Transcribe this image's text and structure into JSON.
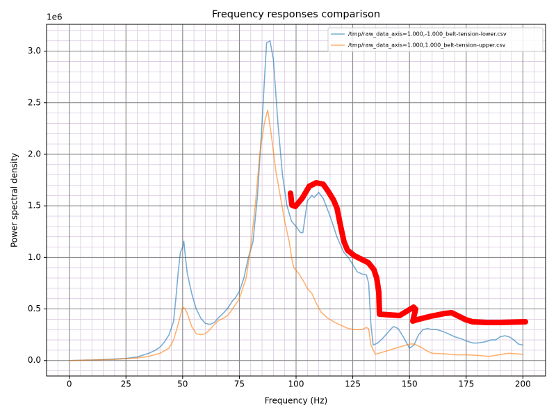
{
  "chart_data": {
    "type": "line",
    "title": "Frequency responses comparison",
    "xlabel": "Frequency (Hz)",
    "ylabel": "Power spectral density",
    "y_offset_label": "1e6",
    "xlim": [
      -10,
      210
    ],
    "ylim": [
      -0.15,
      3.26
    ],
    "xticks": [
      0,
      25,
      50,
      75,
      100,
      125,
      150,
      175,
      200
    ],
    "yticks": [
      {
        "value": 0,
        "label": "0.0"
      },
      0.5,
      {
        "value": 1,
        "label": "1.0"
      },
      1.5,
      {
        "value": 2,
        "label": "2.0"
      },
      2.5,
      {
        "value": 3,
        "label": "3.0"
      }
    ],
    "xminorticks": [
      -10,
      -5,
      0,
      5,
      10,
      15,
      20,
      25,
      30,
      35,
      40,
      45,
      50,
      55,
      60,
      65,
      70,
      75,
      80,
      85,
      90,
      95,
      100,
      105,
      110,
      115,
      120,
      125,
      130,
      135,
      140,
      145,
      150,
      155,
      160,
      165,
      170,
      175,
      180,
      185,
      190,
      195,
      200,
      205,
      210
    ],
    "yminorticks": [
      -0.1,
      0,
      0.1,
      0.2,
      0.3,
      0.4,
      0.5,
      0.6,
      0.7,
      0.8,
      0.9,
      1,
      1.1,
      1.2,
      1.3,
      1.4,
      1.5,
      1.6,
      1.7,
      1.8,
      1.9,
      2,
      2.1,
      2.2,
      2.3,
      2.4,
      2.5,
      2.6,
      2.7,
      2.8,
      2.9,
      3,
      3.1,
      3.2
    ],
    "grid": true,
    "legend": "upper right",
    "series": [
      {
        "name": "/tmp/raw_data_axis=1.000,-1.000_belt-tension-lower.csv",
        "color": "#1f77b4",
        "x": [
          0,
          10,
          20,
          25,
          30,
          35,
          38,
          40,
          42,
          44,
          46,
          47,
          48,
          49,
          50,
          50.5,
          51,
          52,
          54,
          56,
          58,
          60,
          62,
          64,
          66,
          68,
          70,
          72,
          73,
          75,
          77,
          79,
          81,
          83,
          85,
          86,
          87,
          88.5,
          90,
          92,
          94,
          96,
          98,
          100,
          102,
          103,
          105,
          107,
          108,
          110,
          112,
          115,
          118,
          121,
          123,
          125,
          127,
          129,
          131,
          132,
          133,
          134,
          136,
          138,
          140,
          142,
          143,
          145,
          147,
          149,
          150,
          152,
          154,
          156,
          158,
          160,
          162,
          165,
          168,
          170,
          173,
          175,
          178,
          180,
          183,
          186,
          188,
          190,
          192,
          194,
          196,
          198,
          200
        ],
        "values": [
          0,
          0.005,
          0.015,
          0.02,
          0.035,
          0.07,
          0.1,
          0.13,
          0.18,
          0.25,
          0.38,
          0.6,
          0.85,
          1.05,
          1.1,
          1.16,
          1.05,
          0.85,
          0.65,
          0.5,
          0.41,
          0.36,
          0.35,
          0.37,
          0.42,
          0.46,
          0.51,
          0.58,
          0.6,
          0.67,
          0.8,
          1.0,
          1.15,
          1.6,
          2.3,
          2.7,
          3.08,
          3.1,
          2.92,
          2.3,
          1.8,
          1.5,
          1.35,
          1.3,
          1.24,
          1.24,
          1.55,
          1.6,
          1.58,
          1.63,
          1.57,
          1.4,
          1.2,
          1.05,
          1.0,
          0.93,
          0.86,
          0.84,
          0.83,
          0.75,
          0.35,
          0.15,
          0.17,
          0.21,
          0.26,
          0.31,
          0.33,
          0.31,
          0.24,
          0.16,
          0.12,
          0.15,
          0.25,
          0.3,
          0.31,
          0.3,
          0.3,
          0.28,
          0.25,
          0.23,
          0.21,
          0.19,
          0.17,
          0.17,
          0.18,
          0.2,
          0.2,
          0.23,
          0.24,
          0.23,
          0.2,
          0.16,
          0.15
        ]
      },
      {
        "name": "/tmp/raw_data_axis=1.000,1.000_belt-tension-upper.csv",
        "color": "#ff7f0e",
        "x": [
          0,
          20,
          30,
          35,
          40,
          44,
          46,
          48,
          50,
          51,
          52,
          54,
          56,
          58,
          60,
          62,
          64,
          66,
          68,
          70,
          72,
          75,
          78,
          80,
          82,
          84,
          86,
          87.5,
          89,
          91,
          93,
          95,
          97,
          98,
          99,
          101,
          103,
          105,
          107,
          109,
          111,
          114,
          117,
          120,
          123,
          126,
          129,
          131,
          132,
          133,
          135,
          138,
          141,
          144,
          147,
          150,
          152,
          155,
          158,
          160,
          165,
          168,
          170,
          175,
          180,
          185,
          188,
          192,
          194,
          197,
          200
        ],
        "values": [
          0,
          0.01,
          0.025,
          0.04,
          0.07,
          0.12,
          0.2,
          0.35,
          0.52,
          0.5,
          0.46,
          0.33,
          0.26,
          0.25,
          0.26,
          0.3,
          0.35,
          0.39,
          0.41,
          0.44,
          0.5,
          0.6,
          0.8,
          1.1,
          1.5,
          2.0,
          2.3,
          2.43,
          2.2,
          1.85,
          1.6,
          1.35,
          1.15,
          1.0,
          0.9,
          0.85,
          0.78,
          0.7,
          0.65,
          0.55,
          0.47,
          0.41,
          0.37,
          0.34,
          0.31,
          0.3,
          0.3,
          0.32,
          0.31,
          0.15,
          0.06,
          0.08,
          0.1,
          0.12,
          0.14,
          0.16,
          0.16,
          0.13,
          0.09,
          0.07,
          0.065,
          0.06,
          0.055,
          0.055,
          0.05,
          0.04,
          0.05,
          0.065,
          0.07,
          0.065,
          0.06
        ]
      }
    ]
  }
}
